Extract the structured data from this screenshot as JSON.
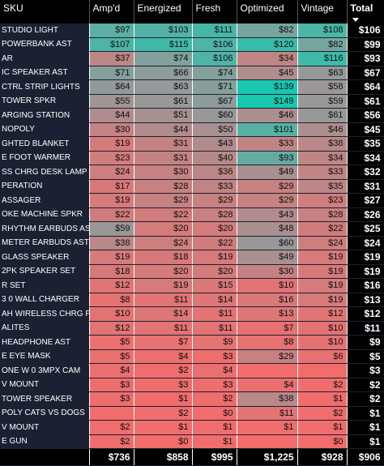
{
  "header": {
    "columns": [
      "SKU",
      "Amp'd",
      "Energized",
      "Fresh",
      "Optimized",
      "Vintage",
      "Total"
    ]
  },
  "table": {
    "rows": [
      [
        "STUDIO LIGHT",
        "$97",
        "$103",
        "$111",
        "$82",
        "$108",
        "$106"
      ],
      [
        "POWERBANK AST",
        "$107",
        "$115",
        "$106",
        "$120",
        "$82",
        "$99"
      ],
      [
        "AR",
        "$37",
        "$74",
        "$106",
        "$34",
        "$116",
        "$93"
      ],
      [
        "IC SPEAKER AST",
        "$71",
        "$66",
        "$74",
        "$45",
        "$63",
        "$67"
      ],
      [
        "CTRL STRIP LIGHTS",
        "$64",
        "$63",
        "$71",
        "$139",
        "$58",
        "$64"
      ],
      [
        "TOWER SPKR",
        "$55",
        "$61",
        "$67",
        "$149",
        "$59",
        "$61"
      ],
      [
        "ARGING STATION",
        "$44",
        "$51",
        "$60",
        "$46",
        "$61",
        "$56"
      ],
      [
        "NOPOLY",
        "$30",
        "$44",
        "$50",
        "$101",
        "$46",
        "$45"
      ],
      [
        "GHTED BLANKET",
        "$19",
        "$31",
        "$43",
        "$33",
        "$38",
        "$35"
      ],
      [
        "E FOOT WARMER",
        "$23",
        "$31",
        "$40",
        "$93",
        "$34",
        "$34"
      ],
      [
        "SS CHRG DESK LAMP",
        "$24",
        "$30",
        "$36",
        "$49",
        "$33",
        "$32"
      ],
      [
        "PERATION",
        "$17",
        "$28",
        "$33",
        "$29",
        "$35",
        "$31"
      ],
      [
        "ASSAGER",
        "$19",
        "$29",
        "$29",
        "$29",
        "$23",
        "$27"
      ],
      [
        "OKE MACHINE SPKR",
        "$22",
        "$22",
        "$28",
        "$43",
        "$28",
        "$26"
      ],
      [
        "RHYTHM EARBUDS AST",
        "$59",
        "$20",
        "$20",
        "$48",
        "$22",
        "$25"
      ],
      [
        "METER EARBUDS AST",
        "$38",
        "$24",
        "$22",
        "$60",
        "$24",
        "$24"
      ],
      [
        "GLASS SPEAKER",
        "$19",
        "$18",
        "$19",
        "$49",
        "$19",
        "$19"
      ],
      [
        "2PK SPEAKER SET",
        "$18",
        "$20",
        "$20",
        "$30",
        "$19",
        "$19"
      ],
      [
        "R SET",
        "$12",
        "$19",
        "$15",
        "$10",
        "$19",
        "$16"
      ],
      [
        "3 0 WALL CHARGER",
        "$8",
        "$11",
        "$14",
        "$16",
        "$19",
        "$13"
      ],
      [
        "AH WIRELESS CHRG PB",
        "$10",
        "$14",
        "$11",
        "$13",
        "$12",
        "$12"
      ],
      [
        "ALITES",
        "$12",
        "$11",
        "$11",
        "$7",
        "$10",
        "$11"
      ],
      [
        "HEADPHONE AST",
        "$5",
        "$7",
        "$9",
        "$8",
        "$10",
        "$9"
      ],
      [
        "E EYE MASK",
        "$5",
        "$4",
        "$3",
        "$29",
        "$6",
        "$5"
      ],
      [
        "ONE W 0 3MPX CAM",
        "$4",
        "$2",
        "$4",
        null,
        null,
        "$3"
      ],
      [
        "V MOUNT",
        "$3",
        "$3",
        "$3",
        "$4",
        "$2",
        "$2"
      ],
      [
        "TOWER SPEAKER",
        "$3",
        "$1",
        "$2",
        "$38",
        "$1",
        "$2"
      ],
      [
        "POLY CATS VS DOGS",
        null,
        "$2",
        "$0",
        "$11",
        "$2",
        "$1"
      ],
      [
        "V MOUNT",
        "$2",
        "$1",
        "$1",
        "$1",
        "$1",
        "$1"
      ],
      [
        "E GUN",
        "$2",
        "$0",
        "$1",
        null,
        "$0",
        "$1"
      ]
    ]
  },
  "totals": [
    "$736",
    "$858",
    "$995",
    "$1,225",
    "$928",
    "$906"
  ]
}
